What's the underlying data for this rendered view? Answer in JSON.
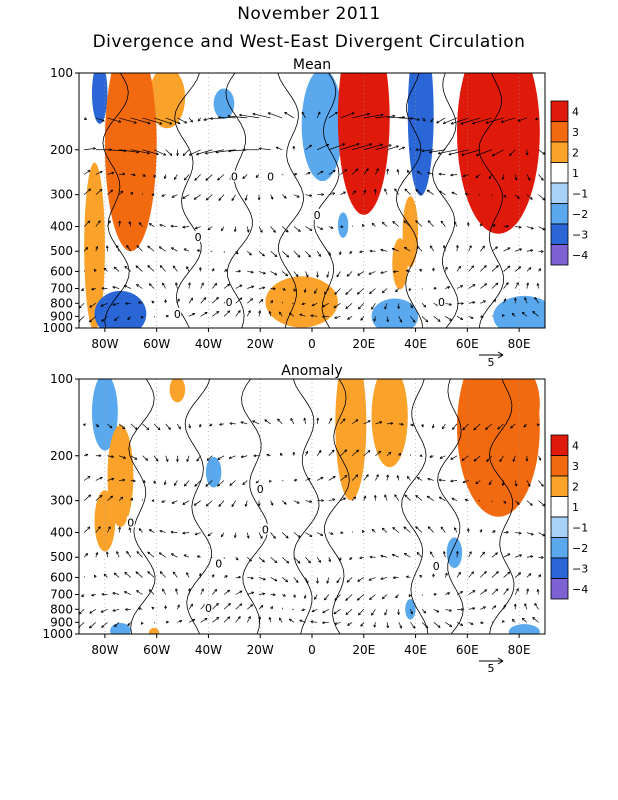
{
  "figure": {
    "title": "November 2011",
    "subtitle": "Divergence and West-East Divergent Circulation"
  },
  "colors": {
    "pos4": "#e01a0a",
    "pos3": "#f26a10",
    "pos2": "#faa22a",
    "pos1": "#ffffff",
    "neg1": "#a8d2f8",
    "neg2": "#5aa8ee",
    "neg3": "#2a66d6",
    "neg4": "#7e62d4"
  },
  "chart_data": [
    {
      "type": "heatmap",
      "title": "Mean",
      "xlabel": "",
      "ylabel": "",
      "x_range": [
        -90,
        90
      ],
      "y_range": [
        1000,
        100
      ],
      "y_scale": "log",
      "x_ticks": [
        {
          "value": -80,
          "label": "80W"
        },
        {
          "value": -60,
          "label": "60W"
        },
        {
          "value": -40,
          "label": "40W"
        },
        {
          "value": -20,
          "label": "20W"
        },
        {
          "value": 0,
          "label": "0"
        },
        {
          "value": 20,
          "label": "20E"
        },
        {
          "value": 40,
          "label": "40E"
        },
        {
          "value": 60,
          "label": "60E"
        },
        {
          "value": 80,
          "label": "80E"
        }
      ],
      "y_ticks": [
        100,
        200,
        300,
        400,
        500,
        600,
        700,
        800,
        900,
        1000
      ],
      "colorbar": {
        "levels": [
          4,
          3,
          2,
          1,
          -1,
          -2,
          -3,
          -4
        ]
      },
      "vector_reference": {
        "label": "5"
      },
      "contour_labels": [
        {
          "x": -30,
          "p": 255,
          "text": "0"
        },
        {
          "x": -16,
          "p": 255,
          "text": "0"
        },
        {
          "x": 2,
          "p": 360,
          "text": "0"
        },
        {
          "x": -44,
          "p": 440,
          "text": "0"
        },
        {
          "x": 50,
          "p": 790,
          "text": "0"
        },
        {
          "x": -32,
          "p": 790,
          "text": "0"
        },
        {
          "x": -52,
          "p": 880,
          "text": "0"
        }
      ],
      "regions": [
        {
          "x": -70,
          "p": 190,
          "rx": 10,
          "rlogp": 0.42,
          "v": 3.2
        },
        {
          "x": -56,
          "p": 125,
          "rx": 7,
          "rlogp": 0.12,
          "v": 2.4
        },
        {
          "x": -84,
          "p": 480,
          "rx": 4,
          "rlogp": 0.33,
          "v": 1.8
        },
        {
          "x": -82,
          "p": 120,
          "rx": 3,
          "rlogp": 0.12,
          "v": -2.8
        },
        {
          "x": -74,
          "p": 880,
          "rx": 10,
          "rlogp": 0.09,
          "v": -3.0
        },
        {
          "x": -34,
          "p": 132,
          "rx": 4,
          "rlogp": 0.06,
          "v": -1.6
        },
        {
          "x": 4,
          "p": 160,
          "rx": 8,
          "rlogp": 0.22,
          "v": -1.6
        },
        {
          "x": 20,
          "p": 150,
          "rx": 10,
          "rlogp": 0.38,
          "v": 3.6
        },
        {
          "x": 42,
          "p": 145,
          "rx": 5,
          "rlogp": 0.32,
          "v": -2.6
        },
        {
          "x": 38,
          "p": 420,
          "rx": 3,
          "rlogp": 0.14,
          "v": 1.6
        },
        {
          "x": 34,
          "p": 560,
          "rx": 3,
          "rlogp": 0.1,
          "v": 1.6
        },
        {
          "x": -4,
          "p": 790,
          "rx": 14,
          "rlogp": 0.1,
          "v": 1.9
        },
        {
          "x": 12,
          "p": 395,
          "rx": 2,
          "rlogp": 0.05,
          "v": -1.6
        },
        {
          "x": 32,
          "p": 900,
          "rx": 9,
          "rlogp": 0.07,
          "v": -2.4
        },
        {
          "x": 72,
          "p": 170,
          "rx": 16,
          "rlogp": 0.4,
          "v": 3.7
        },
        {
          "x": 82,
          "p": 900,
          "rx": 12,
          "rlogp": 0.08,
          "v": -2.4
        }
      ]
    },
    {
      "type": "heatmap",
      "title": "Anomaly",
      "xlabel": "",
      "ylabel": "",
      "x_range": [
        -90,
        90
      ],
      "y_range": [
        1000,
        100
      ],
      "y_scale": "log",
      "x_ticks": [
        {
          "value": -80,
          "label": "80W"
        },
        {
          "value": -60,
          "label": "60W"
        },
        {
          "value": -40,
          "label": "40W"
        },
        {
          "value": -20,
          "label": "20W"
        },
        {
          "value": 0,
          "label": "0"
        },
        {
          "value": 20,
          "label": "20E"
        },
        {
          "value": 40,
          "label": "40E"
        },
        {
          "value": 60,
          "label": "60E"
        },
        {
          "value": 80,
          "label": "80E"
        }
      ],
      "y_ticks": [
        100,
        200,
        300,
        400,
        500,
        600,
        700,
        800,
        900,
        1000
      ],
      "colorbar": {
        "levels": [
          4,
          3,
          2,
          1,
          -1,
          -2,
          -3,
          -4
        ]
      },
      "vector_reference": {
        "label": "5"
      },
      "contour_labels": [
        {
          "x": -70,
          "p": 365,
          "text": "0"
        },
        {
          "x": -20,
          "p": 270,
          "text": "0"
        },
        {
          "x": -18,
          "p": 390,
          "text": "0"
        },
        {
          "x": -36,
          "p": 530,
          "text": "0"
        },
        {
          "x": 48,
          "p": 540,
          "text": "0"
        },
        {
          "x": -40,
          "p": 790,
          "text": "0"
        }
      ],
      "regions": [
        {
          "x": -80,
          "p": 135,
          "rx": 5,
          "rlogp": 0.15,
          "v": -1.6
        },
        {
          "x": -74,
          "p": 240,
          "rx": 5,
          "rlogp": 0.2,
          "v": 1.8
        },
        {
          "x": -80,
          "p": 360,
          "rx": 4,
          "rlogp": 0.12,
          "v": 1.7
        },
        {
          "x": -52,
          "p": 110,
          "rx": 3,
          "rlogp": 0.05,
          "v": 1.7
        },
        {
          "x": -38,
          "p": 232,
          "rx": 3,
          "rlogp": 0.06,
          "v": -1.6
        },
        {
          "x": 15,
          "p": 150,
          "rx": 6,
          "rlogp": 0.3,
          "v": 2.2
        },
        {
          "x": 30,
          "p": 140,
          "rx": 7,
          "rlogp": 0.2,
          "v": 1.8
        },
        {
          "x": 72,
          "p": 155,
          "rx": 16,
          "rlogp": 0.35,
          "v": 2.6
        },
        {
          "x": 82,
          "p": 125,
          "rx": 6,
          "rlogp": 0.13,
          "v": 3.2
        },
        {
          "x": 55,
          "p": 480,
          "rx": 3,
          "rlogp": 0.06,
          "v": -1.6
        },
        {
          "x": 38,
          "p": 800,
          "rx": 2,
          "rlogp": 0.04,
          "v": -1.6
        },
        {
          "x": -74,
          "p": 970,
          "rx": 4,
          "rlogp": 0.03,
          "v": -1.6
        },
        {
          "x": -61,
          "p": 990,
          "rx": 2,
          "rlogp": 0.02,
          "v": 2.1
        },
        {
          "x": 82,
          "p": 980,
          "rx": 6,
          "rlogp": 0.03,
          "v": -1.6
        }
      ]
    }
  ]
}
